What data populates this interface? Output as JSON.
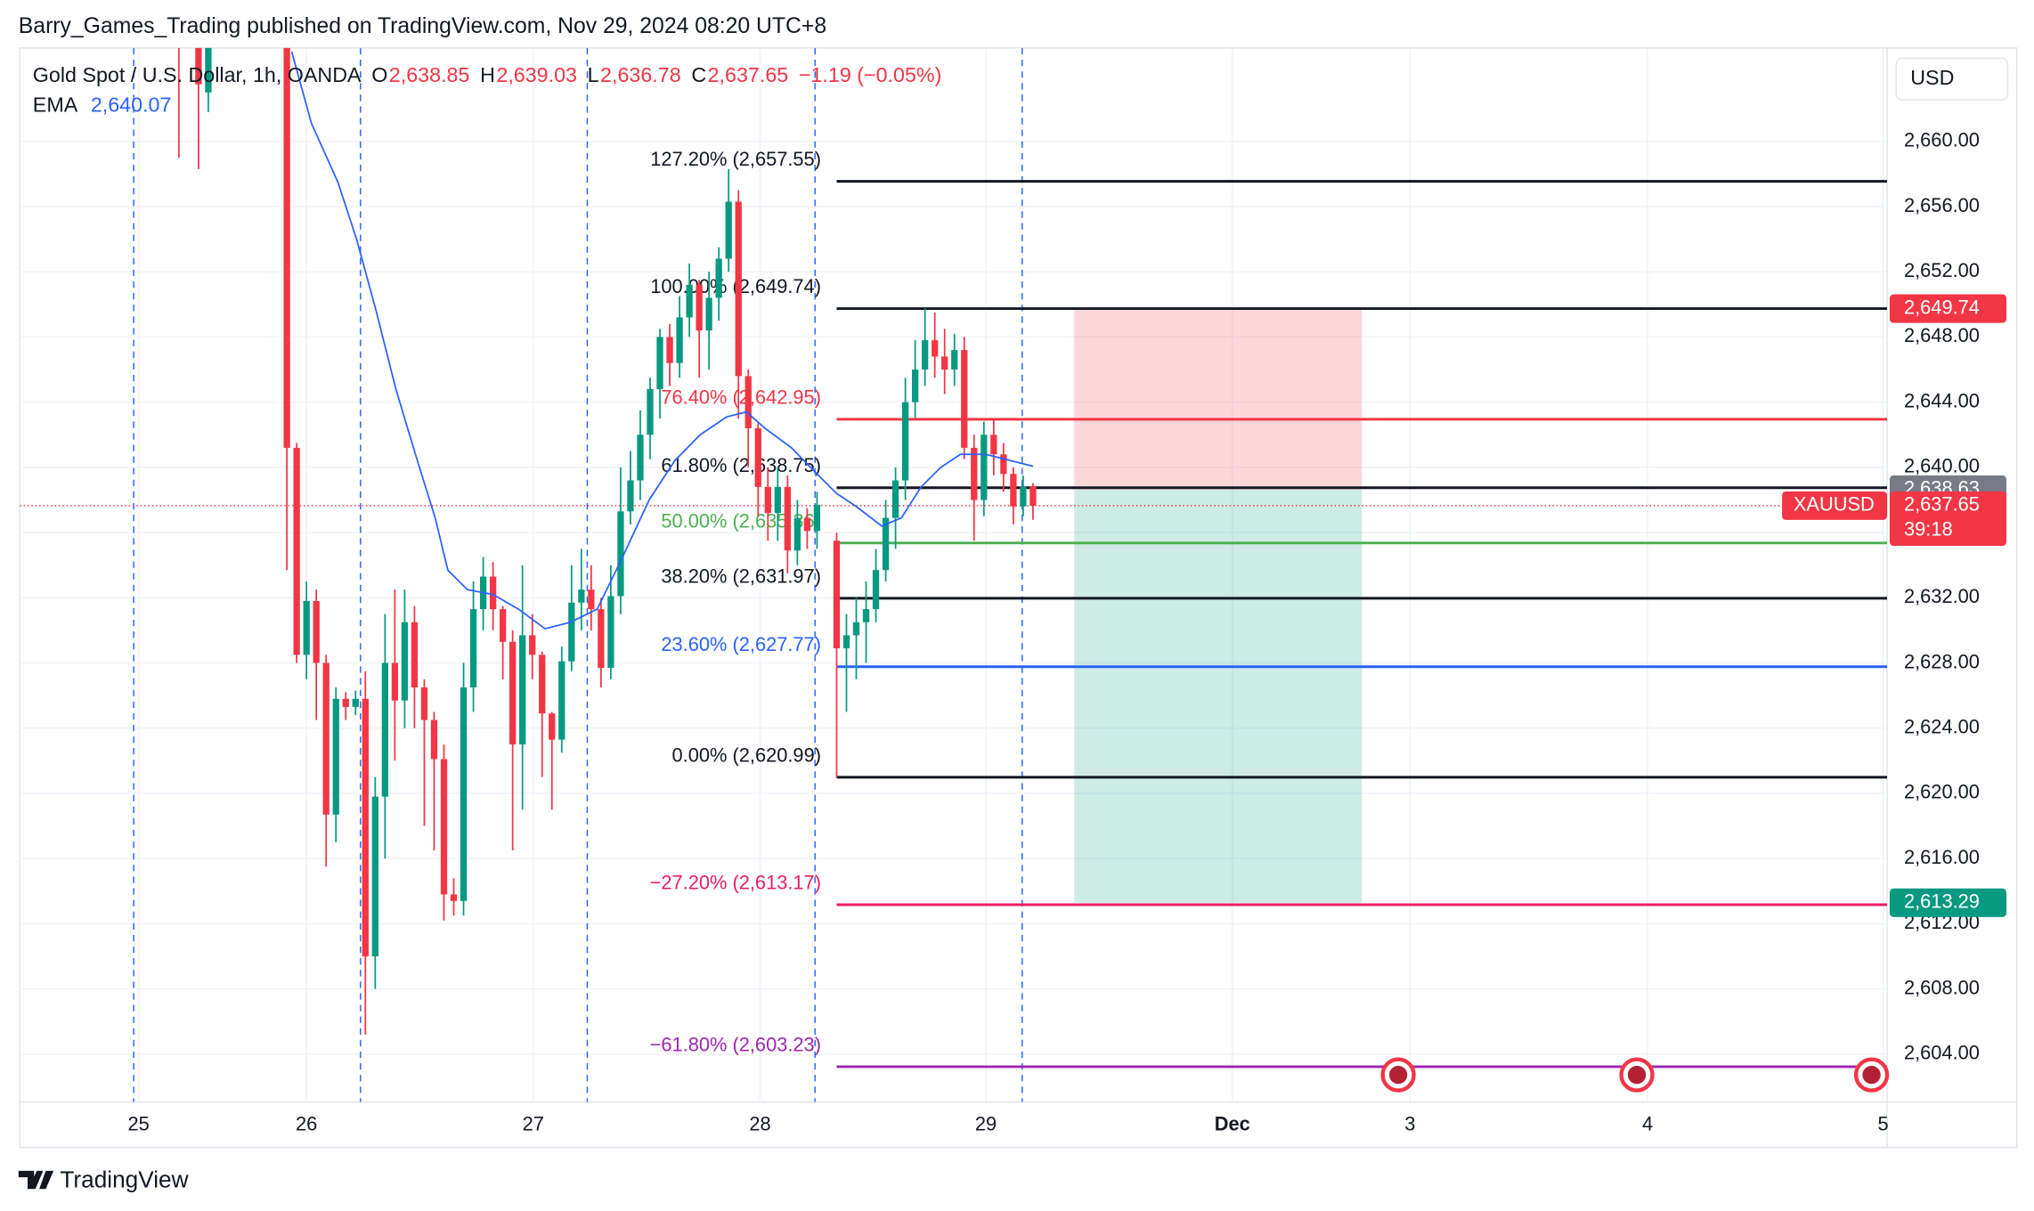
{
  "header": "Barry_Games_Trading published on TradingView.com, Nov 29, 2024 08:20 UTC+8",
  "footer": "TradingView",
  "chart_data": {
    "type": "candlestick",
    "legend": {
      "symbol": "Gold Spot / U.S. Dollar, 1h, OANDA",
      "fields": [
        {
          "key": "O",
          "value": 2638.85,
          "label": "2,638.85"
        },
        {
          "key": "H",
          "value": 2639.03,
          "label": "2,639.03"
        },
        {
          "key": "L",
          "value": 2636.78,
          "label": "2,636.78"
        },
        {
          "key": "C",
          "value": 2637.65,
          "label": "2,637.65"
        }
      ],
      "change": "−1.19 (−0.05%)",
      "ema_name": "EMA",
      "ema_value": {
        "value": 2640.07,
        "label": "2,640.07"
      }
    },
    "currency": "USD",
    "up_color": "#089981",
    "down_color": "#f23645",
    "ema_color": "#2962ff",
    "grid": true,
    "xlim": [
      -27.2,
      163
    ],
    "ylim": [
      2601.06,
      2665.73
    ],
    "xticks": [
      {
        "value": -15.1,
        "label": "25"
      },
      {
        "value": 2,
        "label": "26"
      },
      {
        "value": 25.1,
        "label": "27"
      },
      {
        "value": 48.2,
        "label": "28"
      },
      {
        "value": 71.2,
        "label": "29"
      },
      {
        "value": 96.3,
        "label": "Dec"
      },
      {
        "value": 114.4,
        "label": "3"
      },
      {
        "value": 138.6,
        "label": "4"
      },
      {
        "value": 162.6,
        "label": "5"
      }
    ],
    "yticks": [
      {
        "value": 2604,
        "label": "2,604.00"
      },
      {
        "value": 2608,
        "label": "2,608.00"
      },
      {
        "value": 2612,
        "label": "2,612.00"
      },
      {
        "value": 2616,
        "label": "2,616.00"
      },
      {
        "value": 2620,
        "label": "2,620.00"
      },
      {
        "value": 2624,
        "label": "2,624.00"
      },
      {
        "value": 2628,
        "label": "2,628.00"
      },
      {
        "value": 2632,
        "label": "2,632.00"
      },
      {
        "value": 2636,
        "label": "2,636.00"
      },
      {
        "value": 2640,
        "label": "2,640.00"
      },
      {
        "value": 2644,
        "label": "2,644.00"
      },
      {
        "value": 2648,
        "label": "2,648.00"
      },
      {
        "value": 2652,
        "label": "2,652.00"
      },
      {
        "value": 2656,
        "label": "2,656.00"
      },
      {
        "value": 2660,
        "label": "2,660.00"
      }
    ],
    "session_breaks": [
      -15.6,
      7.5,
      30.6,
      53.8,
      74.9
    ],
    "candles": {
      "x": [
        -11,
        -9,
        -8,
        0,
        1,
        2,
        3,
        4,
        5,
        6,
        7,
        8,
        9,
        10,
        11,
        12,
        13,
        14,
        15,
        16,
        17,
        18,
        19,
        20,
        21,
        22,
        23,
        24,
        25,
        26,
        27,
        28,
        29,
        30,
        31,
        32,
        33,
        34,
        35,
        36,
        37,
        38,
        39,
        40,
        41,
        42,
        43,
        44,
        45,
        46,
        47,
        48,
        49,
        50,
        51,
        52,
        53,
        54,
        56,
        57,
        58,
        59,
        60,
        61,
        62,
        63,
        64,
        65,
        66,
        67,
        68,
        69,
        70,
        71,
        72,
        73,
        74,
        75,
        76
      ],
      "open": [
        2672,
        2668,
        2663,
        2668,
        2641.2,
        2628.5,
        2631.8,
        2628,
        2618.7,
        2625.8,
        2625.3,
        2625.8,
        2610,
        2619.8,
        2628,
        2625.7,
        2630.5,
        2626.5,
        2624.5,
        2622.1,
        2613.8,
        2613.4,
        2626.5,
        2631.3,
        2633.3,
        2631.3,
        2629.3,
        2623,
        2629.7,
        2628.5,
        2624.9,
        2623.3,
        2628.1,
        2631.7,
        2632.5,
        2631.3,
        2627.7,
        2632.1,
        2637.3,
        2639.2,
        2642,
        2644.8,
        2648,
        2646.4,
        2649.2,
        2651.2,
        2648.4,
        2650.4,
        2652.8,
        2656.3,
        2645.6,
        2642.4,
        2638.8,
        2637.2,
        2638.8,
        2634.9,
        2636.9,
        2636.1,
        2635.5,
        2628.9,
        2629.7,
        2630.5,
        2631.3,
        2633.7,
        2636.9,
        2639.2,
        2644,
        2646,
        2647.8,
        2646.8,
        2646,
        2647.2,
        2641.2,
        2638,
        2642,
        2640.8,
        2639.6,
        2637.6,
        2638.85
      ],
      "high": [
        2675,
        2671,
        2668,
        2669,
        2641.5,
        2633,
        2632.5,
        2628.5,
        2626.5,
        2626.2,
        2626.3,
        2627.5,
        2621,
        2631,
        2632.5,
        2632.5,
        2631.5,
        2627,
        2625,
        2623,
        2614.8,
        2628,
        2633,
        2634.5,
        2634.2,
        2631.5,
        2630,
        2634,
        2631,
        2628.7,
        2625,
        2629,
        2634,
        2635,
        2634,
        2632,
        2634,
        2640,
        2641,
        2643.5,
        2645.5,
        2648.5,
        2648.8,
        2650.5,
        2652.5,
        2651.5,
        2652,
        2653.5,
        2658.3,
        2657,
        2646,
        2642.7,
        2640,
        2640,
        2639.5,
        2638,
        2637.5,
        2638.5,
        2636,
        2631,
        2632,
        2633,
        2635,
        2638,
        2640,
        2645.5,
        2647.8,
        2649.74,
        2649.5,
        2648.5,
        2648.2,
        2648,
        2642,
        2642.8,
        2643,
        2641.5,
        2640,
        2639.5,
        2639.03
      ],
      "low": [
        2659,
        2658.3,
        2661.8,
        2633.7,
        2628,
        2627,
        2624.5,
        2615.5,
        2617,
        2624.5,
        2624.8,
        2605.2,
        2608,
        2616,
        2622,
        2624,
        2624,
        2618,
        2616.5,
        2612.2,
        2612.5,
        2612.5,
        2625,
        2630,
        2630,
        2627,
        2616.5,
        2619,
        2627,
        2621,
        2619,
        2622.5,
        2627.5,
        2630,
        2630,
        2626.5,
        2627,
        2631,
        2636.5,
        2638,
        2640.5,
        2643,
        2645,
        2645.5,
        2648,
        2645.5,
        2646,
        2649,
        2652,
        2643,
        2640,
        2637,
        2635.5,
        2635.5,
        2633.5,
        2634,
        2635,
        2635,
        2620.99,
        2625,
        2627,
        2628,
        2630.5,
        2633,
        2635,
        2638,
        2643,
        2645,
        2645.5,
        2644.5,
        2645,
        2640.5,
        2635.5,
        2637,
        2639.5,
        2638.5,
        2636.5,
        2637,
        2636.78
      ],
      "close": [
        2666,
        2663.5,
        2666,
        2641.2,
        2628.5,
        2631.8,
        2628,
        2618.7,
        2625.8,
        2625.3,
        2625.8,
        2610,
        2619.8,
        2628,
        2625.7,
        2630.5,
        2626.5,
        2624.5,
        2622.1,
        2613.8,
        2613.4,
        2626.5,
        2631.3,
        2633.3,
        2631.3,
        2629.3,
        2623,
        2629.7,
        2628.5,
        2624.9,
        2623.3,
        2628.1,
        2631.7,
        2632.5,
        2631.3,
        2627.7,
        2632.1,
        2637.3,
        2639.2,
        2642,
        2644.8,
        2648,
        2646.4,
        2649.2,
        2651.2,
        2648.4,
        2650.4,
        2652.8,
        2656.3,
        2645.6,
        2642.4,
        2638.8,
        2637.2,
        2638.8,
        2634.9,
        2636.9,
        2636.1,
        2637.7,
        2628.9,
        2629.7,
        2630.5,
        2631.3,
        2633.7,
        2636.9,
        2639.2,
        2644,
        2646,
        2647.8,
        2646.8,
        2646,
        2647.2,
        2641.2,
        2638,
        2642,
        2640.8,
        2639.6,
        2637.6,
        2638.8,
        2637.65
      ]
    },
    "ema": {
      "x": [
        0.5,
        2.5,
        5.2,
        7.1,
        9.1,
        11.1,
        13.1,
        15.1,
        16.4,
        18.4,
        21,
        23.6,
        26.3,
        28.9,
        31.6,
        34.2,
        36.9,
        39.5,
        42.1,
        44.8,
        46.8,
        48.7,
        51.4,
        54,
        56,
        58,
        60.6,
        62.6,
        64.6,
        66.6,
        68.6,
        71.2,
        73.8,
        76
      ],
      "values": [
        2665.5,
        2661.1,
        2657.5,
        2654,
        2649.6,
        2644.8,
        2640.8,
        2636.9,
        2633.7,
        2632.5,
        2632.2,
        2631.3,
        2630.1,
        2630.5,
        2631.3,
        2634.5,
        2638,
        2640.4,
        2642,
        2643.1,
        2643.4,
        2642.4,
        2641.2,
        2639.6,
        2638.4,
        2637.6,
        2636.4,
        2636.9,
        2638.8,
        2640,
        2640.8,
        2640.8,
        2640.4,
        2640.07
      ]
    },
    "fib": {
      "x_start": 56,
      "levels": [
        {
          "label": "127.20% (2,657.55)",
          "value": 2657.55,
          "color": "#131722"
        },
        {
          "label": "100.00% (2,649.74)",
          "value": 2649.74,
          "color": "#131722"
        },
        {
          "label": "76.40% (2,642.95)",
          "value": 2642.95,
          "color": "#f23645"
        },
        {
          "label": "61.80% (2,638.75)",
          "value": 2638.75,
          "color": "#131722"
        },
        {
          "label": "50.00% (2,635.36)",
          "value": 2635.36,
          "color": "#4caf50"
        },
        {
          "label": "38.20% (2,631.97)",
          "value": 2631.97,
          "color": "#131722"
        },
        {
          "label": "23.60% (2,627.77)",
          "value": 2627.77,
          "color": "#2962ff"
        },
        {
          "label": "0.00% (2,620.99)",
          "value": 2620.99,
          "color": "#131722"
        },
        {
          "label": "−27.20% (2,613.17)",
          "value": 2613.17,
          "color": "#e91e63"
        },
        {
          "label": "−61.80% (2,603.23)",
          "value": 2603.23,
          "color": "#9c27b0"
        }
      ]
    },
    "position": {
      "x": [
        80.2,
        109.5
      ],
      "stop": {
        "value": 2649.74,
        "label": "2,649.74",
        "color": "#f23645"
      },
      "entry": {
        "value": 2638.63,
        "label": "2,638.63",
        "color": "#787b86"
      },
      "target": {
        "value": 2613.29,
        "label": "2,613.29",
        "color": "#089981"
      }
    },
    "last_price": {
      "symbol": "XAUUSD",
      "value": 2637.65,
      "label": "2,637.65",
      "countdown": "39:18",
      "color": "#f23645"
    }
  }
}
